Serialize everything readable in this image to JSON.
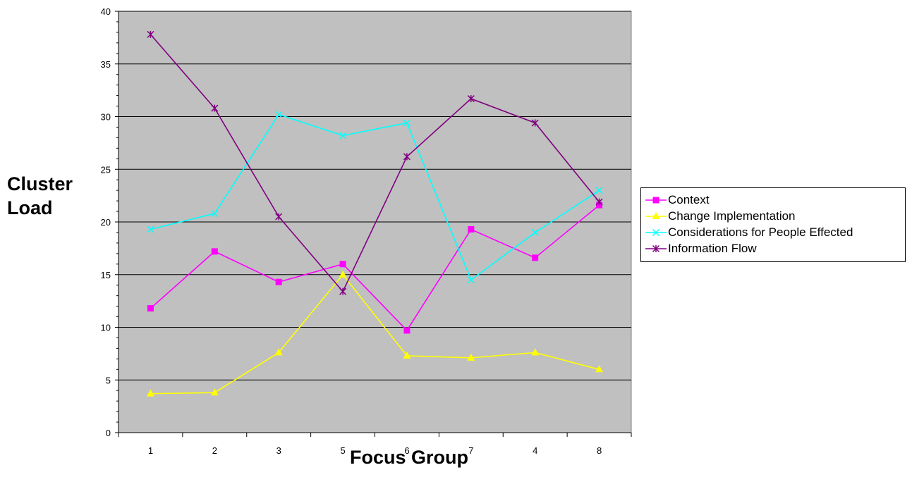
{
  "chart_data": {
    "type": "line",
    "title": "",
    "xlabel": "Focus Group",
    "ylabel": "Cluster Load",
    "ylim": [
      0,
      40
    ],
    "yticks": [
      "0",
      "5",
      "10",
      "15",
      "20",
      "25",
      "30",
      "35",
      "40"
    ],
    "categories": [
      "1",
      "2",
      "3",
      "5",
      "6",
      "7",
      "4",
      "8"
    ],
    "grid": "horizontal",
    "background": "#c0c0c0",
    "legend_position": "right",
    "series": [
      {
        "name": "Context",
        "color": "#ff00ff",
        "marker": "square",
        "values": [
          11.8,
          17.2,
          14.3,
          16.0,
          9.7,
          19.3,
          16.6,
          21.6
        ]
      },
      {
        "name": "Change Implementation",
        "color": "#ffff00",
        "marker": "triangle",
        "values": [
          3.7,
          3.8,
          7.6,
          15.0,
          7.3,
          7.1,
          7.6,
          6.0
        ]
      },
      {
        "name": "Considerations for People Effected",
        "color": "#00ffff",
        "marker": "x",
        "values": [
          19.3,
          20.8,
          30.2,
          28.2,
          29.4,
          14.5,
          19.0,
          23.0
        ]
      },
      {
        "name": "Information Flow",
        "color": "#800080",
        "marker": "star",
        "values": [
          37.8,
          30.8,
          20.5,
          13.4,
          26.2,
          31.7,
          29.4,
          21.9
        ]
      }
    ]
  }
}
